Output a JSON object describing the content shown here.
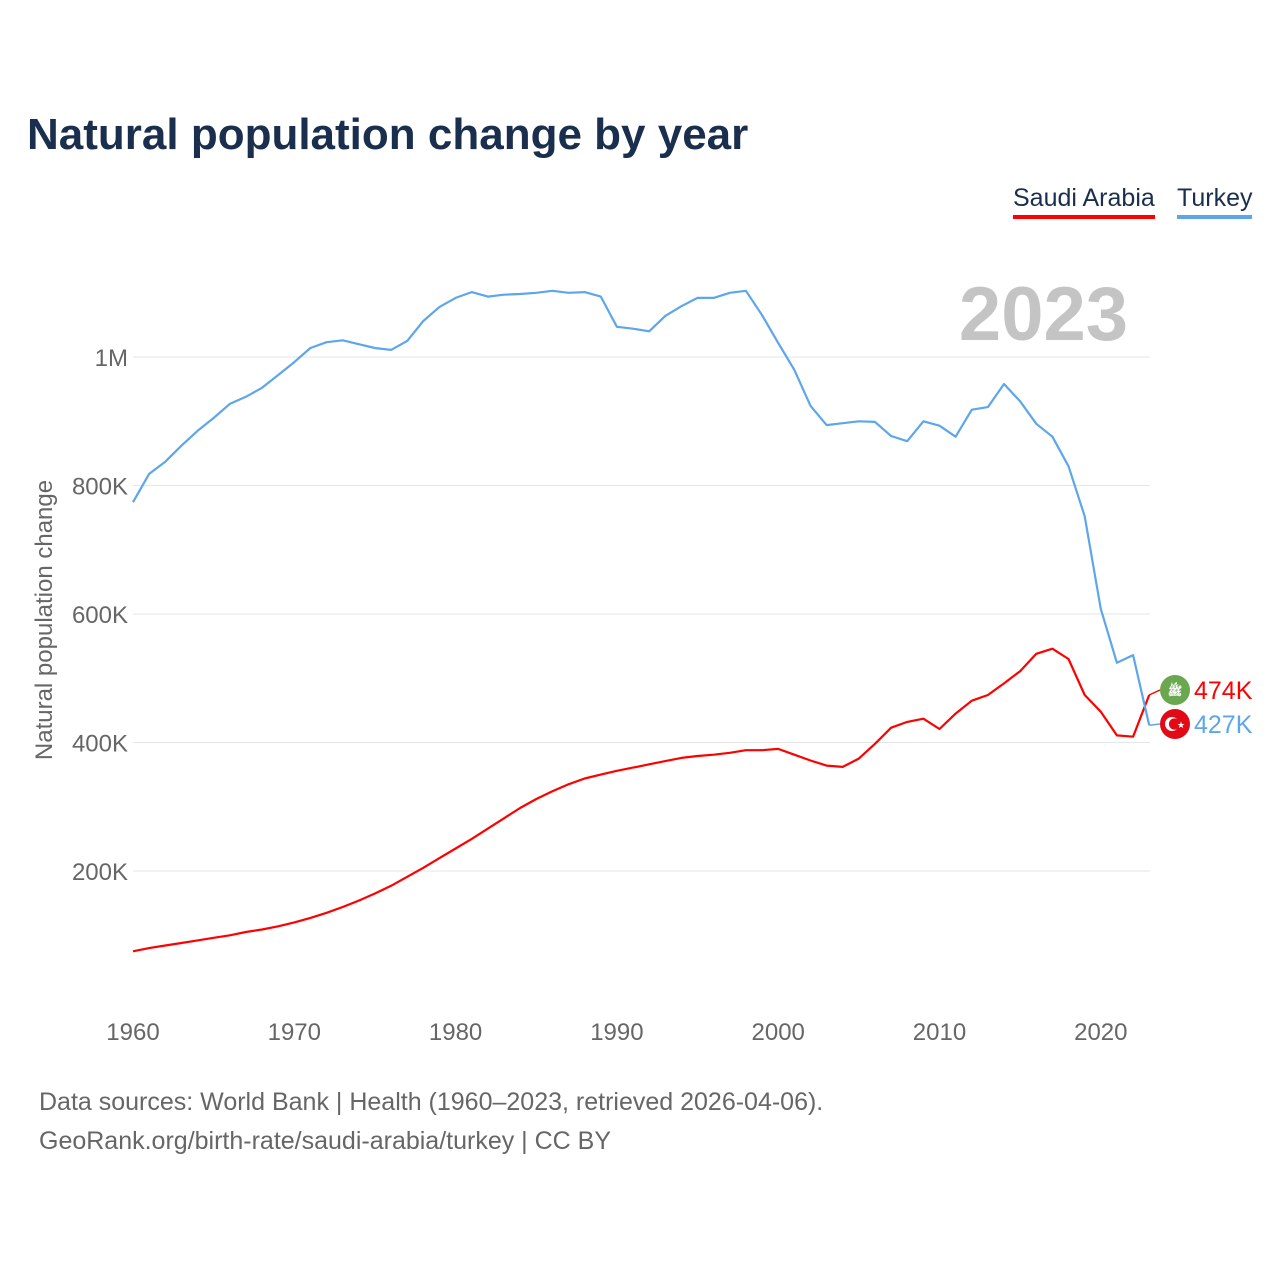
{
  "chart_data": {
    "type": "line",
    "title": "Natural population change by year",
    "xlabel": "",
    "ylabel": "Natural population change",
    "xlim": [
      1960,
      2023
    ],
    "ylim": [
      0,
      1150000
    ],
    "grid": true,
    "legend_position": "top-right",
    "year_label": "2023",
    "x_ticks": [
      1960,
      1970,
      1980,
      1990,
      2000,
      2010,
      2020
    ],
    "x_tick_labels": [
      "1960",
      "1970",
      "1980",
      "1990",
      "2000",
      "2010",
      "2020"
    ],
    "y_ticks": [
      200000,
      400000,
      600000,
      800000,
      1000000
    ],
    "y_tick_labels": [
      "200K",
      "400K",
      "600K",
      "800K",
      "1M"
    ],
    "x": [
      1960,
      1961,
      1962,
      1963,
      1964,
      1965,
      1966,
      1967,
      1968,
      1969,
      1970,
      1971,
      1972,
      1973,
      1974,
      1975,
      1976,
      1977,
      1978,
      1979,
      1980,
      1981,
      1982,
      1983,
      1984,
      1985,
      1986,
      1987,
      1988,
      1989,
      1990,
      1991,
      1992,
      1993,
      1994,
      1995,
      1996,
      1997,
      1998,
      1999,
      2000,
      2001,
      2002,
      2003,
      2004,
      2005,
      2006,
      2007,
      2008,
      2009,
      2010,
      2011,
      2012,
      2013,
      2014,
      2015,
      2016,
      2017,
      2018,
      2019,
      2020,
      2021,
      2022,
      2023
    ],
    "series": [
      {
        "name": "Saudi Arabia",
        "color": "#ff0000",
        "end_label": "474K",
        "flag_icon": "saudi-arabia-flag",
        "values": [
          75,
          80,
          84,
          88,
          92,
          96,
          100,
          105,
          109,
          114,
          120,
          127,
          135,
          144,
          154,
          165,
          177,
          191,
          205,
          220,
          235,
          250,
          266,
          282,
          298,
          312,
          324,
          335,
          344,
          350,
          356,
          361,
          366,
          371,
          376,
          379,
          381,
          384,
          388,
          388,
          390,
          381,
          372,
          364,
          362,
          375,
          398,
          423,
          432,
          437,
          421,
          445,
          465,
          474,
          492,
          511,
          538,
          546,
          530,
          474,
          448,
          411,
          409,
          474
        ]
      },
      {
        "name": "Turkey",
        "color": "#5ea6ea",
        "end_label": "427K",
        "flag_icon": "turkey-flag",
        "values": [
          774,
          818,
          837,
          862,
          885,
          905,
          927,
          938,
          952,
          972,
          992,
          1014,
          1023,
          1026,
          1020,
          1014,
          1011,
          1025,
          1056,
          1078,
          1092,
          1101,
          1094,
          1097,
          1098,
          1100,
          1103,
          1100,
          1101,
          1094,
          1047,
          1044,
          1040,
          1064,
          1079,
          1092,
          1092,
          1100,
          1103,
          1065,
          1022,
          980,
          924,
          894,
          897,
          900,
          899,
          877,
          869,
          900,
          893,
          876,
          918,
          922,
          958,
          931,
          896,
          876,
          830,
          752,
          608,
          524,
          536,
          427
        ]
      }
    ],
    "value_unit": "thousands"
  },
  "sources": {
    "line1": "Data sources: World Bank | Health (1960–2023, retrieved 2026-04-06).",
    "line2": "GeoRank.org/birth-rate/saudi-arabia/turkey | CC BY"
  }
}
